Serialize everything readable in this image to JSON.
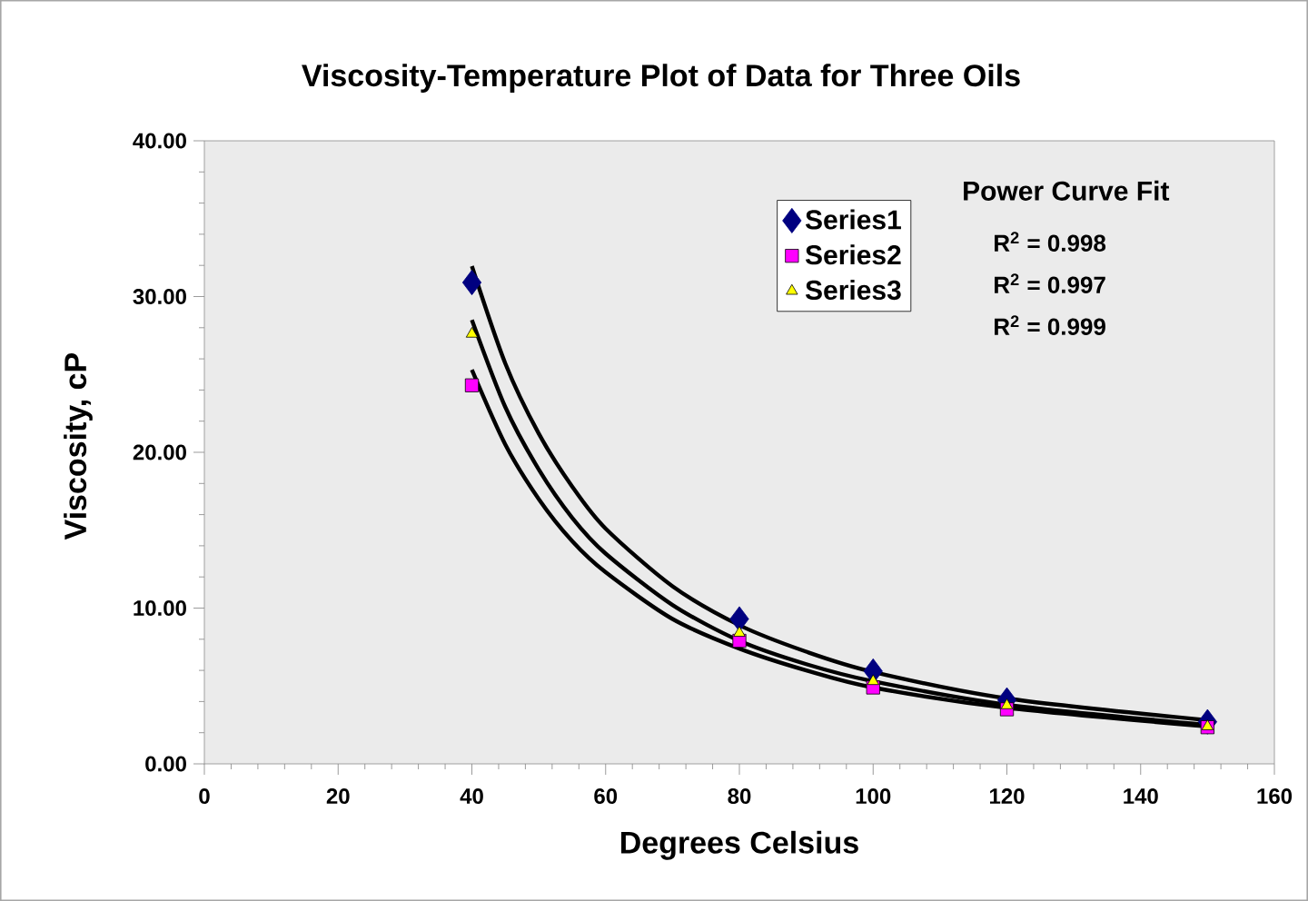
{
  "chart_data": {
    "type": "scatter",
    "title": "Viscosity-Temperature Plot of Data for Three Oils",
    "xlabel": "Degrees Celsius",
    "ylabel": "Viscosity, cP",
    "x": [
      40,
      80,
      100,
      120,
      150
    ],
    "series": [
      {
        "name": "Series1",
        "color": "#000080",
        "marker": "diamond",
        "values": [
          30.9,
          9.3,
          5.95,
          4.1,
          2.7
        ]
      },
      {
        "name": "Series2",
        "color": "#ff00ff",
        "marker": "square",
        "values": [
          24.3,
          7.9,
          4.9,
          3.5,
          2.35
        ]
      },
      {
        "name": "Series3",
        "color": "#ffff00",
        "marker": "triangle",
        "values": [
          27.6,
          8.4,
          5.3,
          3.75,
          2.4
        ]
      },
      {
        "type": "line",
        "color": "#000000",
        "marker": "none",
        "line_style": "solid",
        "x": [
          40,
          45,
          50,
          55,
          60,
          70,
          80,
          90,
          100,
          120,
          150
        ],
        "values": [
          31.95,
          25.7,
          21.2,
          17.8,
          15.1,
          11.4,
          8.9,
          7.2,
          5.9,
          4.2,
          2.8
        ]
      },
      {
        "type": "line",
        "color": "#000000",
        "marker": "none",
        "line_style": "solid",
        "x": [
          40,
          45,
          50,
          55,
          60,
          70,
          80,
          90,
          100,
          120,
          150
        ],
        "values": [
          25.3,
          20.5,
          17.0,
          14.3,
          12.3,
          9.3,
          7.4,
          6.0,
          4.9,
          3.6,
          2.4
        ]
      },
      {
        "type": "line",
        "color": "#000000",
        "marker": "none",
        "line_style": "solid",
        "x": [
          40,
          45,
          50,
          55,
          60,
          70,
          80,
          90,
          100,
          120,
          150
        ],
        "values": [
          28.5,
          22.9,
          18.9,
          15.8,
          13.5,
          10.2,
          7.9,
          6.4,
          5.3,
          3.8,
          2.5
        ]
      }
    ],
    "xlim": [
      0,
      160
    ],
    "xticks": [
      0,
      20,
      40,
      60,
      80,
      100,
      120,
      140,
      160
    ],
    "ylim": [
      0,
      40
    ],
    "yticks": [
      {
        "value": 0,
        "label": "0.00"
      },
      {
        "value": 10,
        "label": "10.00"
      },
      {
        "value": 20,
        "label": "20.00"
      },
      {
        "value": 30,
        "label": "30.00"
      },
      {
        "value": 40,
        "label": "40.00"
      }
    ],
    "grid": false,
    "legend": "top right",
    "annotations": [
      "Power Curve Fit",
      "R$^{2}$ = 0.998",
      "R$^{2}$ = 0.997",
      "R$^{2}$ = 0.999"
    ]
  }
}
